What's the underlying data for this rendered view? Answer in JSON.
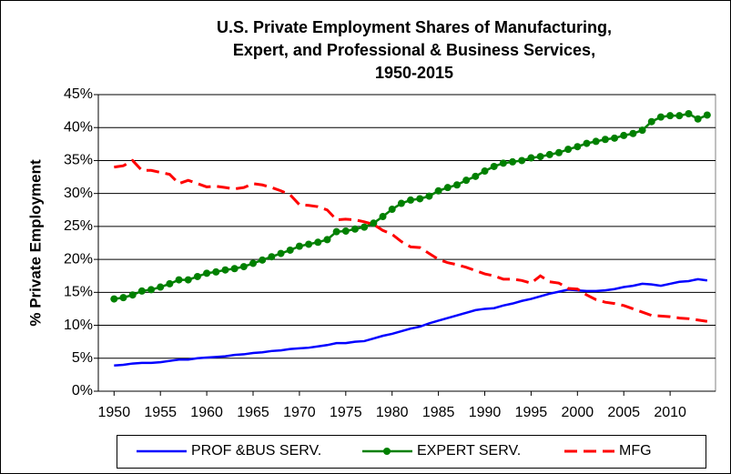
{
  "chart_data": {
    "type": "line",
    "title": [
      "U.S. Private Employment Shares of Manufacturing,",
      "Expert, and Professional & Business Services,",
      "1950-2015"
    ],
    "y_label": "% Private Employment",
    "x": [
      1950,
      1951,
      1952,
      1953,
      1954,
      1955,
      1956,
      1957,
      1958,
      1959,
      1960,
      1961,
      1962,
      1963,
      1964,
      1965,
      1966,
      1967,
      1968,
      1969,
      1970,
      1971,
      1972,
      1973,
      1974,
      1975,
      1976,
      1977,
      1978,
      1979,
      1980,
      1981,
      1982,
      1983,
      1984,
      1985,
      1986,
      1987,
      1988,
      1989,
      1990,
      1991,
      1992,
      1993,
      1994,
      1995,
      1996,
      1997,
      1998,
      1999,
      2000,
      2001,
      2002,
      2003,
      2004,
      2005,
      2006,
      2007,
      2008,
      2009,
      2010,
      2011,
      2012,
      2013,
      2014
    ],
    "series": [
      {
        "name": "PROF &BUS SERV.",
        "color": "#0000ff",
        "style": "solid",
        "markers": false,
        "values": [
          3.9,
          4.0,
          4.2,
          4.3,
          4.3,
          4.4,
          4.6,
          4.8,
          4.8,
          5.0,
          5.1,
          5.2,
          5.3,
          5.5,
          5.6,
          5.8,
          5.9,
          6.1,
          6.2,
          6.4,
          6.5,
          6.6,
          6.8,
          7.0,
          7.3,
          7.3,
          7.5,
          7.6,
          8.0,
          8.4,
          8.7,
          9.1,
          9.5,
          9.8,
          10.3,
          10.7,
          11.1,
          11.5,
          11.9,
          12.3,
          12.5,
          12.6,
          13.0,
          13.3,
          13.7,
          14.0,
          14.4,
          14.8,
          15.1,
          15.4,
          15.3,
          15.2,
          15.2,
          15.3,
          15.5,
          15.8,
          16.0,
          16.3,
          16.2,
          16.0,
          16.3,
          16.6,
          16.7,
          17.0,
          16.8
        ]
      },
      {
        "name": "EXPERT SERV.",
        "color": "#008000",
        "style": "solid",
        "markers": true,
        "values": [
          14.0,
          14.2,
          14.6,
          15.2,
          15.4,
          15.8,
          16.3,
          16.9,
          16.9,
          17.4,
          17.9,
          18.1,
          18.4,
          18.6,
          18.9,
          19.4,
          19.9,
          20.4,
          20.9,
          21.4,
          22.0,
          22.3,
          22.6,
          23.0,
          24.2,
          24.3,
          24.6,
          24.9,
          25.5,
          26.5,
          27.6,
          28.5,
          29.0,
          29.2,
          29.6,
          30.4,
          30.9,
          31.3,
          32.0,
          32.6,
          33.4,
          34.1,
          34.6,
          34.8,
          35.0,
          35.4,
          35.6,
          35.9,
          36.2,
          36.7,
          37.1,
          37.6,
          37.9,
          38.2,
          38.4,
          38.8,
          39.1,
          39.6,
          40.9,
          41.6,
          41.8,
          41.8,
          42.1,
          41.3,
          41.9
        ]
      },
      {
        "name": "MFG",
        "color": "#ff0000",
        "style": "dashed",
        "markers": false,
        "values": [
          34.0,
          34.2,
          35.0,
          33.5,
          33.5,
          33.2,
          32.9,
          31.5,
          32.0,
          31.5,
          31.0,
          31.1,
          30.9,
          30.7,
          30.9,
          31.5,
          31.3,
          30.9,
          30.4,
          29.8,
          28.3,
          28.2,
          28.0,
          27.5,
          26.0,
          26.1,
          26.0,
          25.7,
          25.3,
          24.4,
          23.8,
          22.7,
          21.9,
          21.8,
          20.9,
          20.0,
          19.5,
          19.2,
          18.8,
          18.3,
          17.8,
          17.5,
          17.0,
          17.0,
          16.8,
          16.4,
          17.5,
          16.6,
          16.4,
          15.6,
          15.5,
          14.6,
          13.9,
          13.5,
          13.3,
          13.0,
          12.5,
          12.0,
          11.5,
          11.4,
          11.3,
          11.1,
          11.0,
          10.8,
          10.6
        ]
      }
    ],
    "xlim": [
      1948.3,
      2014.9
    ],
    "xticks": [
      1950,
      1955,
      1960,
      1965,
      1970,
      1975,
      1980,
      1985,
      1990,
      1995,
      2000,
      2005,
      2010
    ],
    "ylim": [
      0,
      45
    ],
    "yticks": [
      {
        "value": 0,
        "label": "0%"
      },
      {
        "value": 5,
        "label": "5%"
      },
      {
        "value": 10,
        "label": "10%"
      },
      {
        "value": 15,
        "label": "15%"
      },
      {
        "value": 20,
        "label": "20%"
      },
      {
        "value": 25,
        "label": "25%"
      },
      {
        "value": 30,
        "label": "30%"
      },
      {
        "value": 35,
        "label": "35%"
      },
      {
        "value": 40,
        "label": "40%"
      },
      {
        "value": 45,
        "label": "45%"
      }
    ],
    "grid": true,
    "legend": "bottom"
  }
}
